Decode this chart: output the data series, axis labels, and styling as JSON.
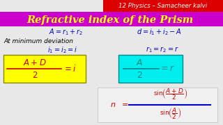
{
  "bg_color": "#e8e8e8",
  "header_bg": "#dd0000",
  "header_text": "12 Physics – Samacheer kalvi",
  "header_text_color": "#ffffff",
  "title_bg": "#cc00cc",
  "title_color": "#ffff00",
  "title_text": "Refractive index of the Prism",
  "eq_color": "#0000cc",
  "deviation_color": "#000000",
  "box1_bg": "#ffff00",
  "box1_border": "#888800",
  "box1_text_color": "#cc0000",
  "box2_bg": "#00eeee",
  "box2_border": "#008888",
  "box2_text_color": "#008888",
  "formula_box_bg": "#f0f0f0",
  "formula_box_border": "#cccccc",
  "formula_color": "#cc0000",
  "frac_bar_color": "#0000cc"
}
